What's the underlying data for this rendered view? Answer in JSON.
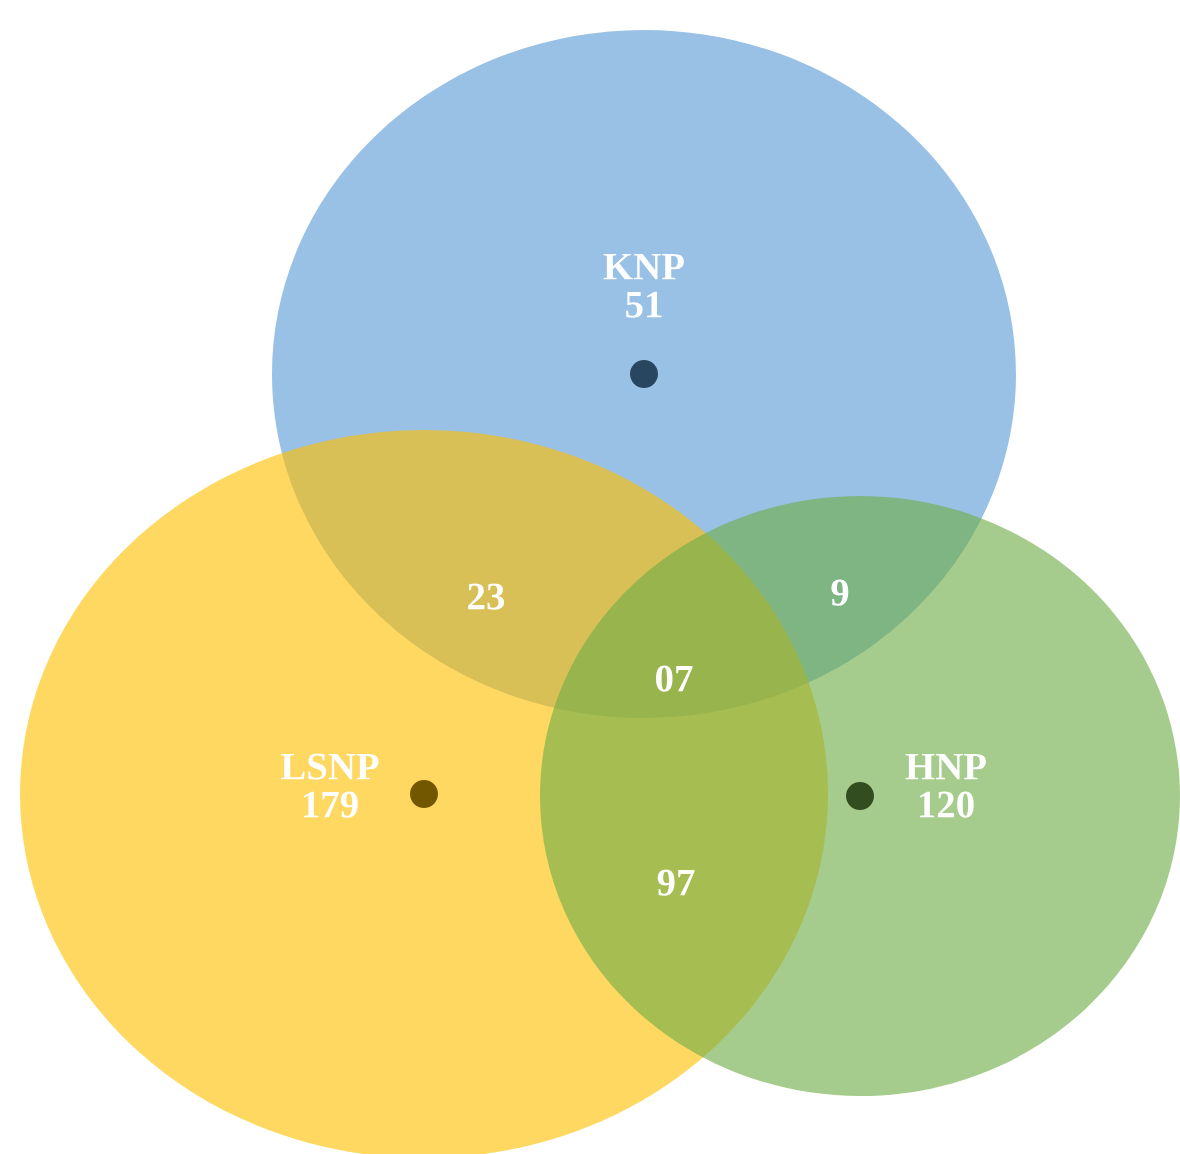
{
  "chart_data": {
    "type": "other",
    "categories": [
      "KNP",
      "LSNP",
      "HNP"
    ],
    "values": [
      51,
      179,
      120
    ],
    "data_labels": true,
    "colors": [
      "#5b9bd5",
      "#ffc000",
      "#70ad47"
    ],
    "annotations": [
      "23",
      "9",
      "07",
      "97"
    ]
  }
}
